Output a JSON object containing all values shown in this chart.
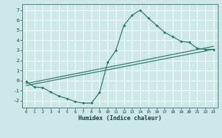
{
  "xlabel": "Humidex (Indice chaleur)",
  "bg_color": "#cce8e8",
  "grid_color": "#ffffff",
  "line_color": "#2a7a6a",
  "xlim": [
    -0.5,
    23.5
  ],
  "ylim": [
    -2.7,
    7.6
  ],
  "xticks": [
    0,
    1,
    2,
    3,
    4,
    5,
    6,
    7,
    8,
    9,
    10,
    11,
    12,
    13,
    14,
    15,
    16,
    17,
    18,
    19,
    20,
    21,
    22,
    23
  ],
  "yticks": [
    -2,
    -1,
    0,
    1,
    2,
    3,
    4,
    5,
    6,
    7
  ],
  "line1_x": [
    0,
    1,
    2,
    3,
    4,
    5,
    6,
    7,
    8,
    9,
    10,
    11,
    12,
    13,
    14,
    15,
    16,
    17,
    18,
    19,
    20,
    21,
    22,
    23
  ],
  "line1_y": [
    -0.1,
    -0.65,
    -0.7,
    -1.15,
    -1.55,
    -1.8,
    -2.1,
    -2.25,
    -2.25,
    -1.2,
    1.8,
    3.0,
    5.5,
    6.5,
    7.0,
    6.2,
    5.5,
    4.8,
    4.35,
    3.9,
    3.8,
    3.2,
    3.1,
    3.1
  ],
  "line2_x": [
    0,
    23
  ],
  "line2_y": [
    -0.3,
    3.4
  ],
  "line3_x": [
    0,
    23
  ],
  "line3_y": [
    -0.5,
    3.1
  ]
}
